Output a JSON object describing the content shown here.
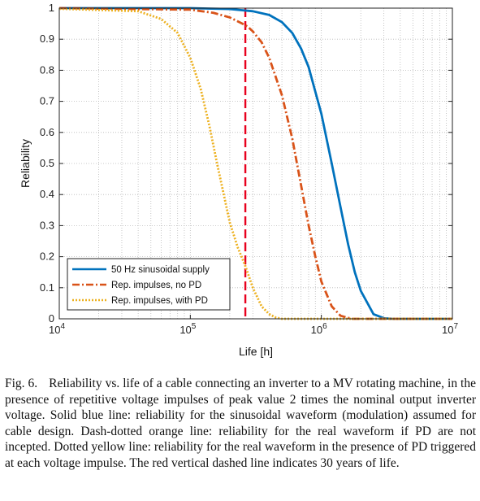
{
  "chart_data": {
    "type": "line",
    "title": "",
    "xlabel": "Life [h]",
    "ylabel": "Reliability",
    "x_scale": "log",
    "xlim": [
      10000,
      10000000
    ],
    "ylim": [
      0,
      1
    ],
    "x_ticks": [
      {
        "value": 10000,
        "base": "10",
        "exp": "4"
      },
      {
        "value": 100000,
        "base": "10",
        "exp": "5"
      },
      {
        "value": 1000000,
        "base": "10",
        "exp": "6"
      },
      {
        "value": 10000000,
        "base": "10",
        "exp": "7"
      }
    ],
    "y_ticks": [
      {
        "value": 0,
        "label": "0"
      },
      {
        "value": 0.1,
        "label": "0.1"
      },
      {
        "value": 0.2,
        "label": "0.2"
      },
      {
        "value": 0.3,
        "label": "0.3"
      },
      {
        "value": 0.4,
        "label": "0.4"
      },
      {
        "value": 0.5,
        "label": "0.5"
      },
      {
        "value": 0.6,
        "label": "0.6"
      },
      {
        "value": 0.7,
        "label": "0.7"
      },
      {
        "value": 0.8,
        "label": "0.8"
      },
      {
        "value": 0.9,
        "label": "0.9"
      },
      {
        "value": 1,
        "label": "1"
      }
    ],
    "grid": true,
    "legend_position": "bottom-left",
    "series": [
      {
        "name": "50 Hz sinusoidal supply",
        "color": "#0072BD",
        "style": "solid",
        "x": [
          10000,
          100000,
          200000,
          300000,
          400000,
          500000,
          600000,
          700000,
          800000,
          1000000,
          1200000,
          1400000,
          1600000,
          1800000,
          2000000,
          2500000,
          3000000,
          3500000,
          10000000
        ],
        "y": [
          1,
          1,
          0.997,
          0.99,
          0.978,
          0.955,
          0.92,
          0.87,
          0.81,
          0.66,
          0.5,
          0.36,
          0.24,
          0.15,
          0.09,
          0.015,
          0.002,
          0,
          0
        ]
      },
      {
        "name": "Rep. impulses, no PD",
        "color": "#D95319",
        "style": "dashdot",
        "x": [
          10000,
          100000,
          150000,
          200000,
          250000,
          275000,
          300000,
          350000,
          400000,
          500000,
          600000,
          700000,
          800000,
          900000,
          1000000,
          1200000,
          1400000,
          1700000,
          2000000,
          10000000
        ],
        "y": [
          1,
          0.995,
          0.985,
          0.97,
          0.95,
          0.94,
          0.925,
          0.89,
          0.84,
          0.72,
          0.58,
          0.43,
          0.3,
          0.2,
          0.12,
          0.04,
          0.01,
          0,
          0,
          0
        ]
      },
      {
        "name": "Rep. impulses, with PD",
        "color": "#EDB120",
        "style": "dotted",
        "x": [
          10000,
          40000,
          60000,
          80000,
          100000,
          120000,
          140000,
          160000,
          180000,
          200000,
          230000,
          263000,
          300000,
          350000,
          400000,
          450000,
          500000,
          10000000
        ],
        "y": [
          0.998,
          0.99,
          0.965,
          0.92,
          0.84,
          0.74,
          0.62,
          0.5,
          0.4,
          0.31,
          0.23,
          0.17,
          0.1,
          0.04,
          0.015,
          0.004,
          0,
          0
        ]
      }
    ],
    "vertical_line": {
      "x": 263000,
      "color": "#E8001E",
      "style": "dashed"
    }
  },
  "caption": {
    "label": "Fig. 6.",
    "text": "Reliability vs. life of a cable connecting an inverter to a MV rotating machine, in the presence of repetitive voltage impulses of peak value 2 times the nominal output inverter voltage. Solid blue line: reliability for the sinusoidal waveform (modulation) assumed for cable design. Dash-dotted orange line: reliability for the real waveform if PD are not incepted. Dotted yellow line: reliability for the real waveform in the presence of PD triggered at each voltage impulse. The red vertical dashed line indicates 30 years of life."
  }
}
